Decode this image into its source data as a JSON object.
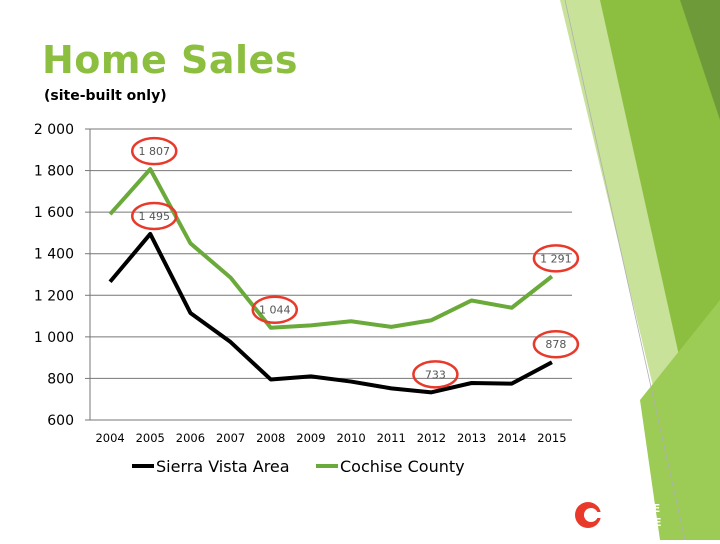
{
  "slide": {
    "title": "Home Sales",
    "subtitle": "(site-built only)",
    "accent_color": "#8cbf3f",
    "logo": {
      "name": "cochise-college-logo",
      "line1": "COCHISE",
      "line2": "COLLEGE",
      "color": "#e8392b"
    }
  },
  "chart_data": {
    "type": "line",
    "categories": [
      "2004",
      "2005",
      "2006",
      "2007",
      "2008",
      "2009",
      "2010",
      "2011",
      "2012",
      "2013",
      "2014",
      "2015"
    ],
    "y_ticks": [
      "2 000",
      "1 800",
      "1 600",
      "1 400",
      "1 200",
      "1 000",
      "800",
      "600"
    ],
    "ylim": [
      600,
      2000
    ],
    "grid": true,
    "legend_position": "bottom",
    "series": [
      {
        "name": "Sierra Vista Area",
        "color": "#000000",
        "values": [
          1265,
          1495,
          1115,
          975,
          795,
          810,
          785,
          752,
          733,
          778,
          775,
          878
        ]
      },
      {
        "name": "Cochise County",
        "color": "#6aaa3a",
        "values": [
          1590,
          1807,
          1450,
          1285,
          1044,
          1055,
          1075,
          1048,
          1080,
          1175,
          1140,
          1291
        ]
      }
    ],
    "annotations": [
      {
        "text": "1 807",
        "series": 1,
        "index": 1
      },
      {
        "text": "1 495",
        "series": 0,
        "index": 1
      },
      {
        "text": "1 291",
        "series": 1,
        "index": 11
      },
      {
        "text": "1 044",
        "series": 1,
        "index": 4
      },
      {
        "text": "878",
        "series": 0,
        "index": 11
      },
      {
        "text": "733",
        "series": 0,
        "index": 8
      }
    ]
  }
}
